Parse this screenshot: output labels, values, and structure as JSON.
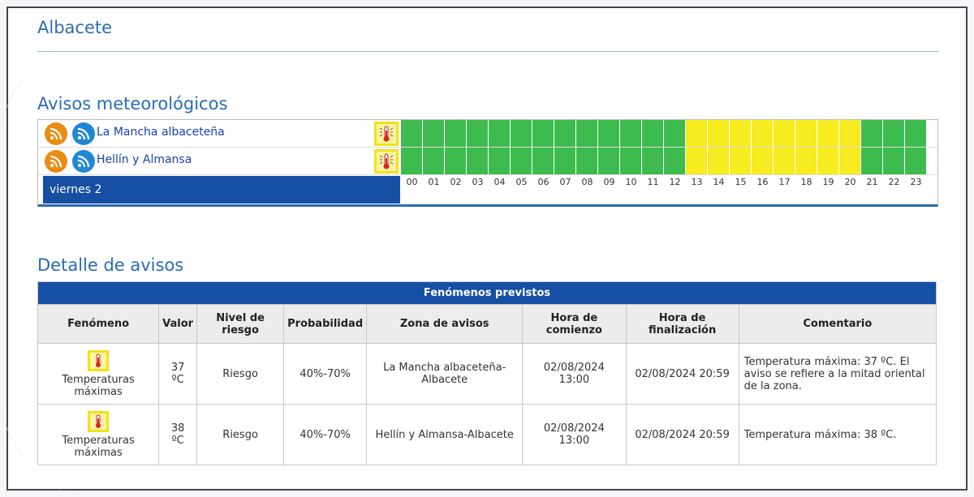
{
  "page": {
    "title": "Albacete"
  },
  "avisos": {
    "heading": "Avisos meteorológicos",
    "day": "viernes 2",
    "hours": [
      "00",
      "01",
      "02",
      "03",
      "04",
      "05",
      "06",
      "07",
      "08",
      "09",
      "10",
      "11",
      "12",
      "13",
      "14",
      "15",
      "16",
      "17",
      "18",
      "19",
      "20",
      "21",
      "22",
      "23"
    ],
    "zones": [
      {
        "name": "La Mancha albaceteña",
        "levels": [
          "green",
          "green",
          "green",
          "green",
          "green",
          "green",
          "green",
          "green",
          "green",
          "green",
          "green",
          "green",
          "green",
          "yellow",
          "yellow",
          "yellow",
          "yellow",
          "yellow",
          "yellow",
          "yellow",
          "yellow",
          "green",
          "green",
          "green"
        ]
      },
      {
        "name": "Hellín y Almansa",
        "levels": [
          "green",
          "green",
          "green",
          "green",
          "green",
          "green",
          "green",
          "green",
          "green",
          "green",
          "green",
          "green",
          "green",
          "yellow",
          "yellow",
          "yellow",
          "yellow",
          "yellow",
          "yellow",
          "yellow",
          "yellow",
          "green",
          "green",
          "green"
        ]
      }
    ],
    "colors": {
      "green": "#3dbb4f",
      "yellow": "#f7ec1f",
      "feed_orange": "#e98b15",
      "feed_blue": "#1f88d6"
    },
    "icons": {
      "feed": "rss-feed-icon",
      "warning": "thermometer-icon"
    }
  },
  "detalle": {
    "heading": "Detalle de avisos",
    "caption": "Fenómenos previstos",
    "columns": [
      "Fenómeno",
      "Valor",
      "Nivel de riesgo",
      "Probabilidad",
      "Zona de avisos",
      "Hora de comienzo",
      "Hora de finalización",
      "Comentario"
    ],
    "rows": [
      {
        "fenomeno": "Temperaturas máximas",
        "valor": "37 ºC",
        "nivel": "Riesgo",
        "probabilidad": "40%-70%",
        "zona": "La Mancha albaceteña-Albacete",
        "comienzo": "02/08/2024 13:00",
        "fin": "02/08/2024 20:59",
        "comentario": "Temperatura máxima: 37 ºC. El aviso se refiere a la mitad oriental de la zona."
      },
      {
        "fenomeno": "Temperaturas máximas",
        "valor": "38 ºC",
        "nivel": "Riesgo",
        "probabilidad": "40%-70%",
        "zona": "Hellín y Almansa-Albacete",
        "comienzo": "02/08/2024 13:00",
        "fin": "02/08/2024 20:59",
        "comentario": "Temperatura máxima: 38 ºC."
      }
    ]
  }
}
